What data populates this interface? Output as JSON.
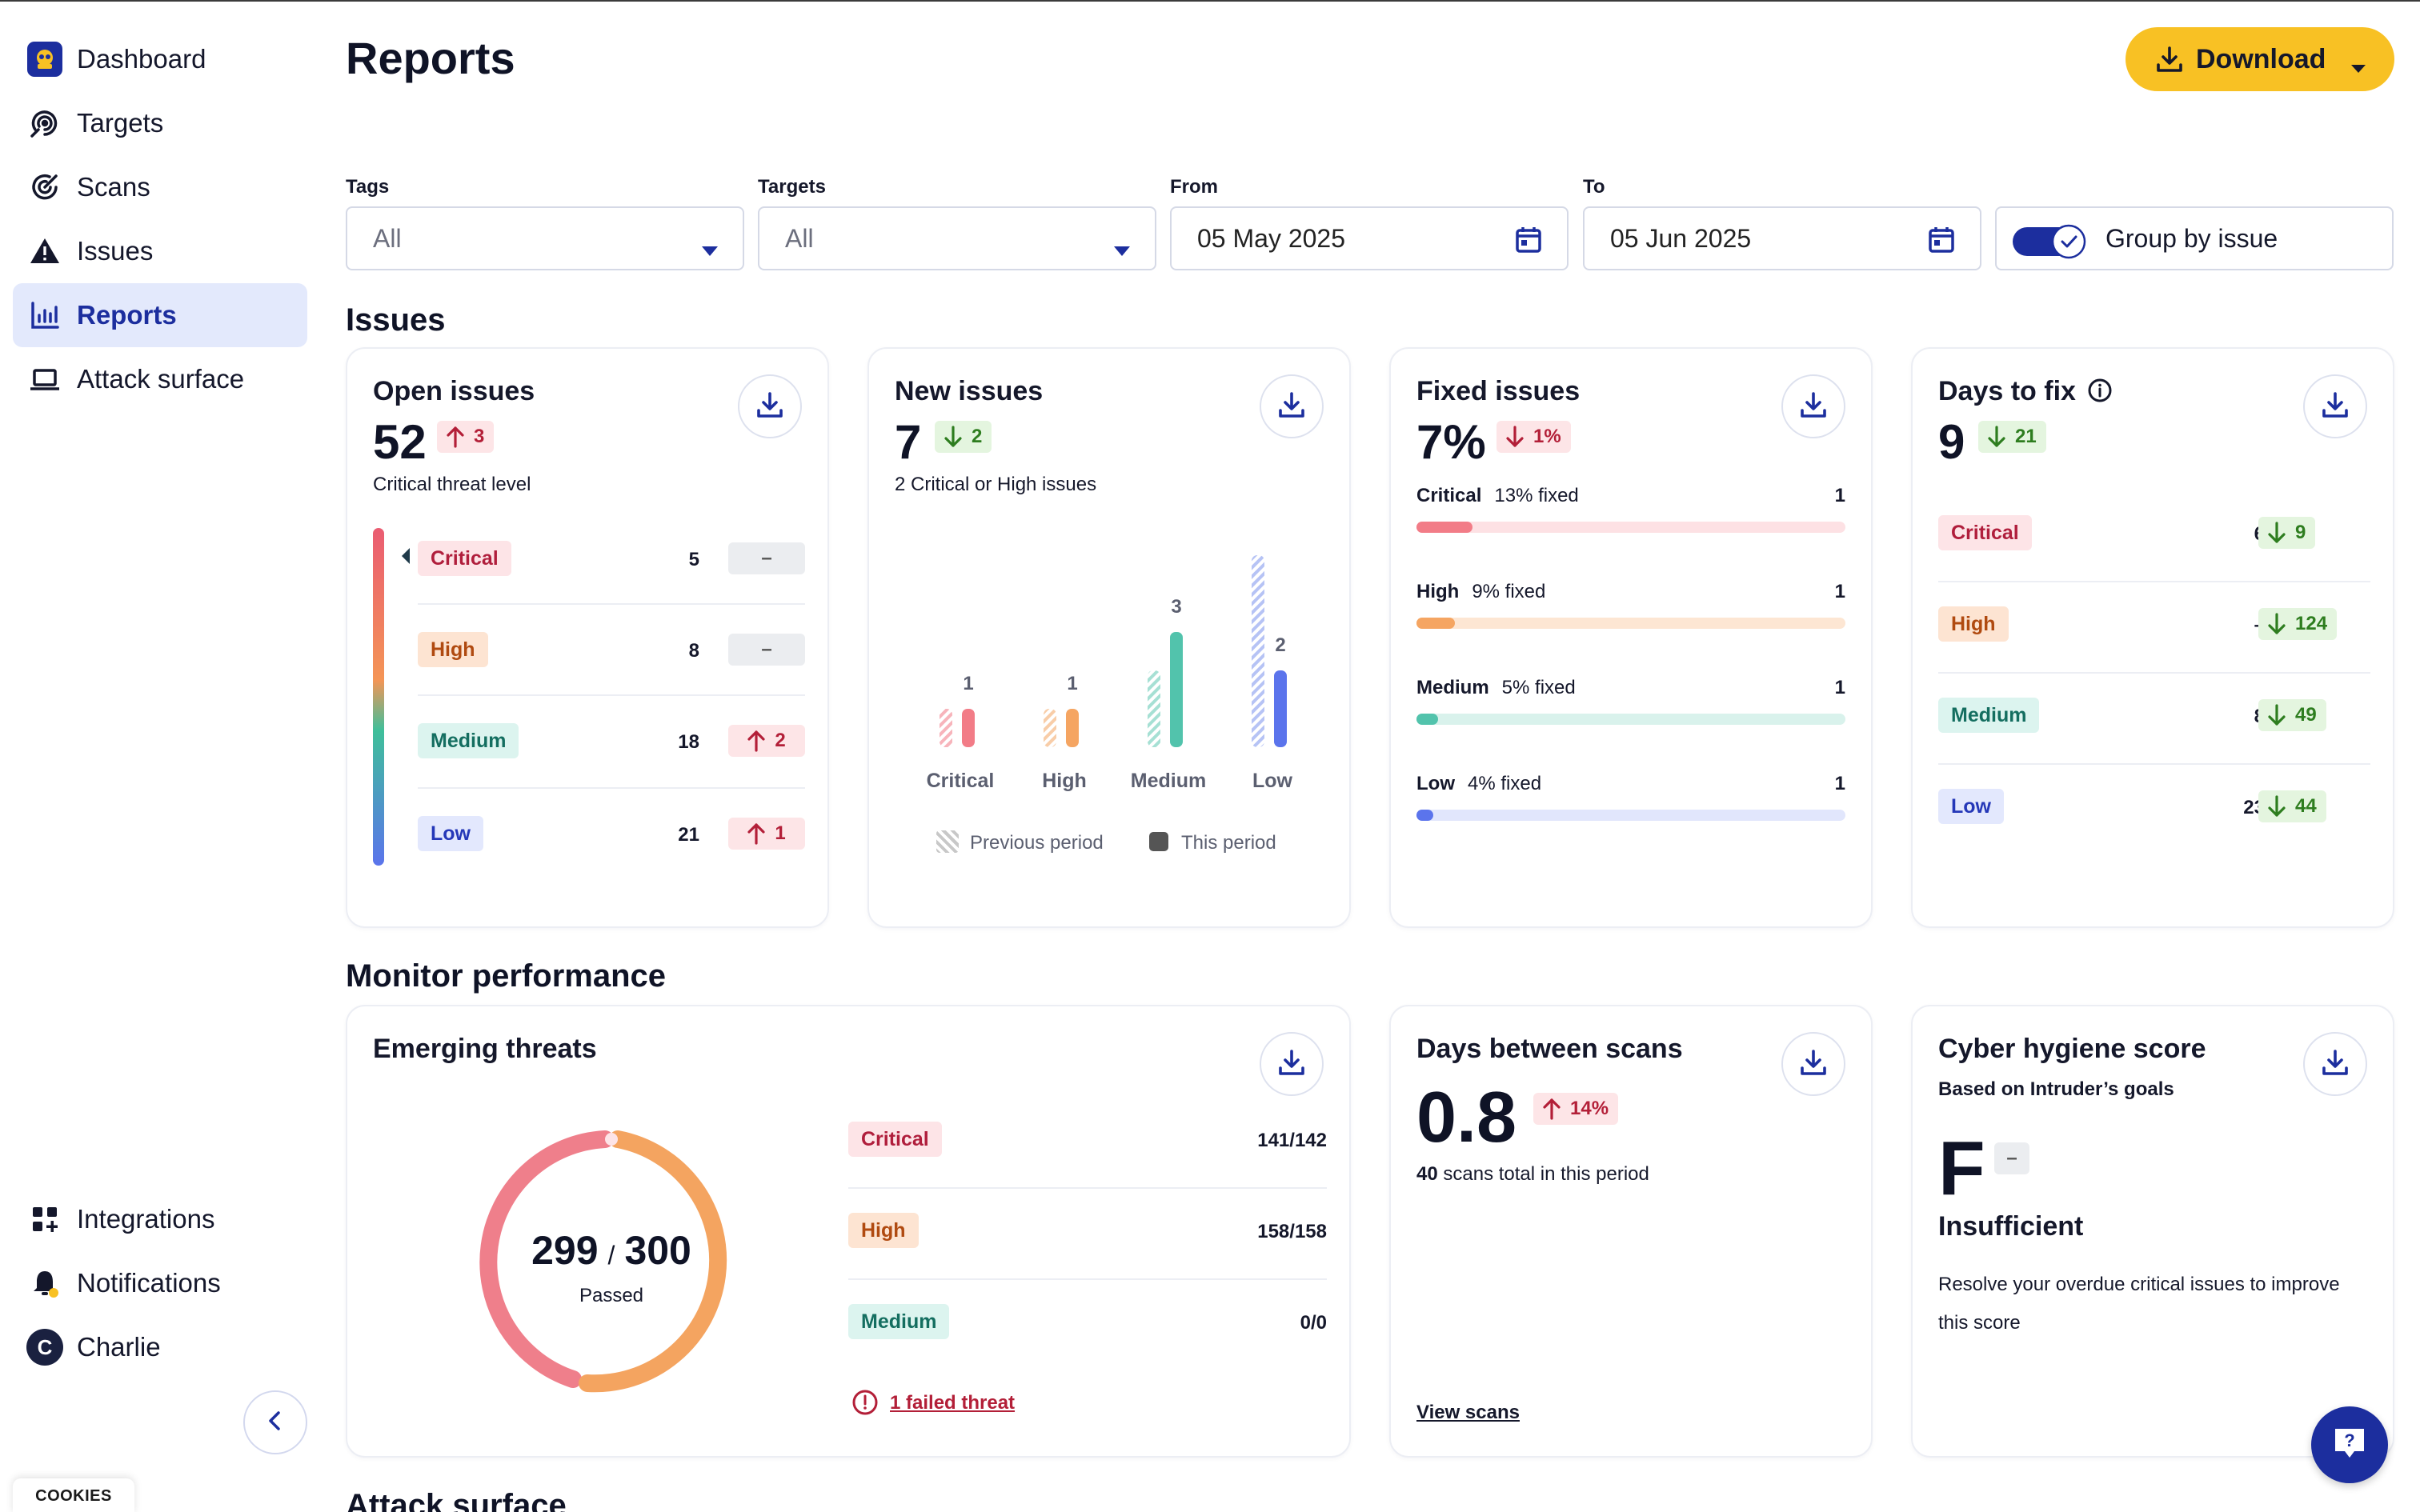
{
  "sidebar": {
    "items": [
      {
        "label": "Dashboard",
        "icon": "intruder-logo-icon"
      },
      {
        "label": "Targets",
        "icon": "targets-icon"
      },
      {
        "label": "Scans",
        "icon": "scans-icon"
      },
      {
        "label": "Issues",
        "icon": "warning-icon"
      },
      {
        "label": "Reports",
        "icon": "bar-chart-icon",
        "active": true
      },
      {
        "label": "Attack surface",
        "icon": "laptop-icon"
      }
    ],
    "bottom_items": [
      {
        "label": "Integrations",
        "icon": "grid-plus-icon"
      },
      {
        "label": "Notifications",
        "icon": "bell-icon"
      },
      {
        "label": "Charlie",
        "icon": "avatar",
        "initial": "C"
      }
    ],
    "cookies_label": "COOKIES"
  },
  "header": {
    "title": "Reports",
    "download_label": "Download"
  },
  "filters": {
    "tags": {
      "label": "Tags",
      "value": "All"
    },
    "targets": {
      "label": "Targets",
      "value": "All"
    },
    "from": {
      "label": "From",
      "value": "05 May 2025"
    },
    "to": {
      "label": "To",
      "value": "05 Jun 2025"
    },
    "group_by_issue": {
      "label": "Group by issue",
      "checked": true
    }
  },
  "issues_section": {
    "title": "Issues",
    "open_issues": {
      "title": "Open issues",
      "value": "52",
      "delta": "3",
      "delta_dir": "up",
      "subtitle": "Critical threat level",
      "rows": [
        {
          "label": "Critical",
          "count": "5",
          "delta": "–",
          "delta_dir": "flat"
        },
        {
          "label": "High",
          "count": "8",
          "delta": "–",
          "delta_dir": "flat"
        },
        {
          "label": "Medium",
          "count": "18",
          "delta": "2",
          "delta_dir": "up"
        },
        {
          "label": "Low",
          "count": "21",
          "delta": "1",
          "delta_dir": "up"
        }
      ]
    },
    "new_issues": {
      "title": "New issues",
      "value": "7",
      "delta": "2",
      "delta_dir": "down",
      "subtitle": "2 Critical or High issues",
      "legend_previous": "Previous period",
      "legend_this": "This period"
    },
    "fixed_issues": {
      "title": "Fixed issues",
      "value": "7%",
      "delta": "1%",
      "delta_dir": "down",
      "rows": [
        {
          "label": "Critical",
          "fixed_text": "13% fixed",
          "count": "1",
          "fraction": 0.13
        },
        {
          "label": "High",
          "fixed_text": "9% fixed",
          "count": "1",
          "fraction": 0.09
        },
        {
          "label": "Medium",
          "fixed_text": "5% fixed",
          "count": "1",
          "fraction": 0.05
        },
        {
          "label": "Low",
          "fixed_text": "4% fixed",
          "count": "1",
          "fraction": 0.04
        }
      ]
    },
    "days_to_fix": {
      "title": "Days to fix",
      "value": "9",
      "delta": "21",
      "delta_dir": "down",
      "rows": [
        {
          "label": "Critical",
          "count": "6",
          "delta": "9"
        },
        {
          "label": "High",
          "count": "–",
          "delta": "124"
        },
        {
          "label": "Medium",
          "count": "8",
          "delta": "49"
        },
        {
          "label": "Low",
          "count": "23",
          "delta": "44"
        }
      ]
    }
  },
  "chart_data": {
    "type": "bar",
    "categories": [
      "Critical",
      "High",
      "Medium",
      "Low"
    ],
    "series": [
      {
        "name": "Previous period",
        "values": [
          1,
          1,
          2,
          5
        ]
      },
      {
        "name": "This period",
        "values": [
          1,
          1,
          3,
          2
        ]
      }
    ],
    "data_labels": [
      "1",
      "1",
      "3",
      "2"
    ],
    "colors": [
      "#f27c87",
      "#f5a562",
      "#52c3ac",
      "#5b74ec"
    ]
  },
  "performance_section": {
    "title": "Monitor performance",
    "emerging_threats": {
      "title": "Emerging threats",
      "passed": "299",
      "separator": "/",
      "total": "300",
      "passed_label": "Passed",
      "rows": [
        {
          "label": "Critical",
          "value": "141/142"
        },
        {
          "label": "High",
          "value": "158/158"
        },
        {
          "label": "Medium",
          "value": "0/0"
        }
      ],
      "failed_link": "1 failed threat"
    },
    "days_between_scans": {
      "title": "Days between scans",
      "value": "0.8",
      "delta": "14%",
      "delta_dir": "up",
      "scans_count": "40",
      "scans_text": "scans total in this period",
      "link": "View scans"
    },
    "cyber_hygiene": {
      "title": "Cyber hygiene score",
      "subtitle": "Based on Intruder’s goals",
      "grade": "F",
      "grade_delta": "–",
      "status": "Insufficient",
      "description_line1": "Resolve your overdue critical issues to improve",
      "description_line2": "this score"
    }
  },
  "attack_surface_section": {
    "title": "Attack surface"
  }
}
